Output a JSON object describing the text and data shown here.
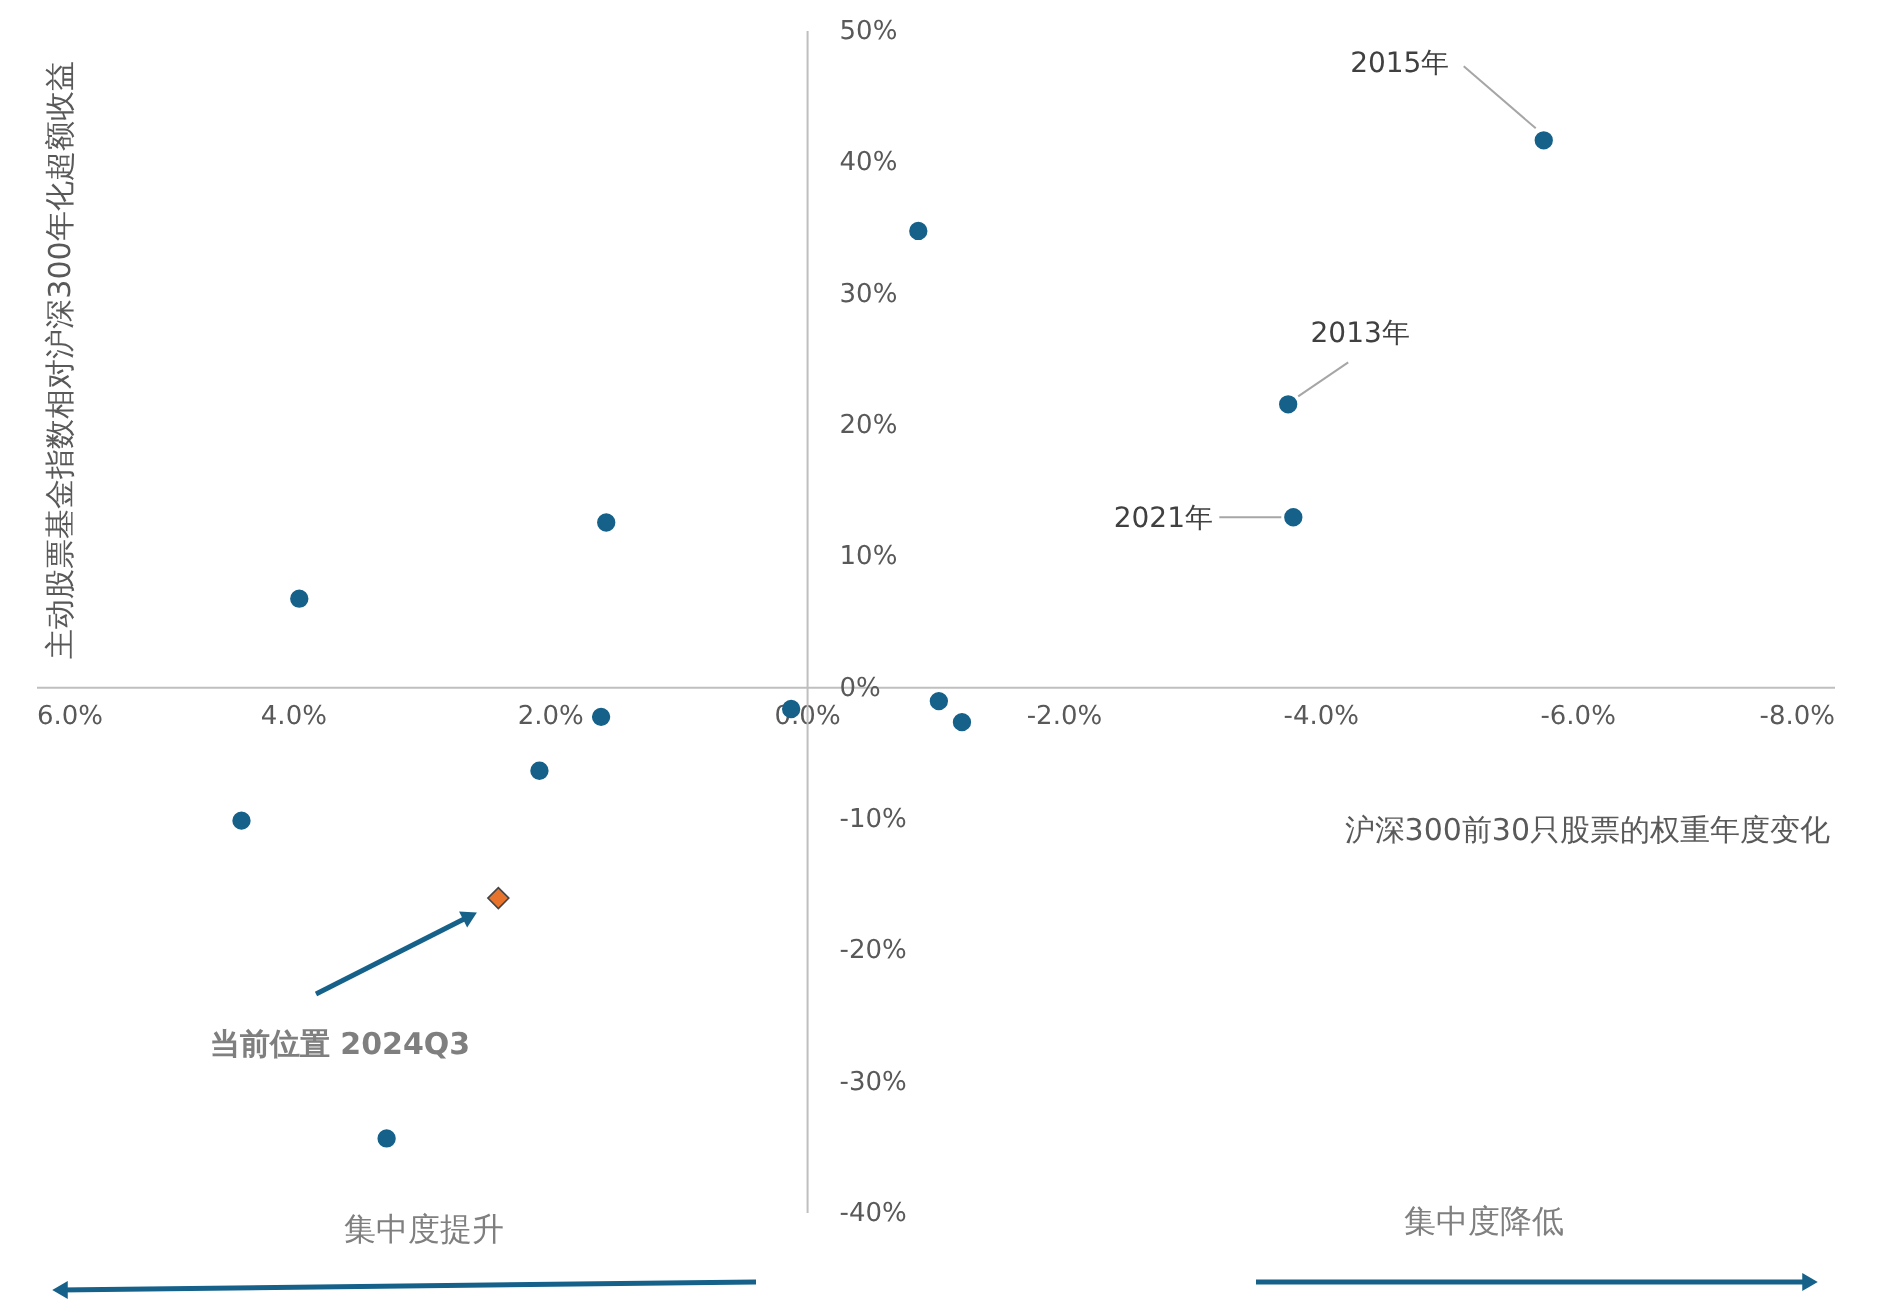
{
  "chart_data": {
    "type": "scatter",
    "xlabel": "沪深300前30只股票的权重年度变化",
    "ylabel": "主动股票基金指数相对沪深300年化超额收益",
    "series": [
      {
        "color": "#15618a",
        "marker": "circle",
        "x": [
          -5.74,
          -3.75,
          -3.79,
          -0.87,
          1.56,
          3.95,
          1.6,
          0.12,
          -1.03,
          -1.21,
          2.08,
          4.4,
          3.27
        ],
        "values": [
          41.6,
          21.5,
          12.9,
          34.7,
          12.5,
          6.7,
          -2.3,
          -1.7,
          -1.1,
          -2.7,
          -6.4,
          -10.2,
          -34.4
        ]
      },
      {
        "color": "#e8732c",
        "marker": "diamond",
        "x": [
          2.4
        ],
        "values": [
          -16.1
        ]
      }
    ],
    "xlim": [
      6,
      -8
    ],
    "ylim": [
      -40,
      50
    ],
    "xticks": [
      {
        "value": 6,
        "label": "6.0%"
      },
      {
        "value": 4,
        "label": "4.0%"
      },
      {
        "value": 2,
        "label": "2.0%"
      },
      {
        "value": 0,
        "label": "0.0%"
      },
      {
        "value": -2,
        "label": "-2.0%"
      },
      {
        "value": -4,
        "label": "-4.0%"
      },
      {
        "value": -6,
        "label": "-6.0%"
      },
      {
        "value": -8,
        "label": "-8.0%"
      }
    ],
    "yticks": [
      {
        "value": 50,
        "label": "50%"
      },
      {
        "value": 40,
        "label": "40%"
      },
      {
        "value": 30,
        "label": "30%"
      },
      {
        "value": 20,
        "label": "20%"
      },
      {
        "value": 10,
        "label": "10%"
      },
      {
        "value": 0,
        "label": "0%"
      },
      {
        "value": -10,
        "label": "-10%"
      },
      {
        "value": -20,
        "label": "-20%"
      },
      {
        "value": -30,
        "label": "-30%"
      },
      {
        "value": -40,
        "label": "-40%"
      }
    ],
    "grid": false,
    "annotations": [
      {
        "text": "2015年",
        "x": -5.74,
        "y": 41.6
      },
      {
        "text": "2013年",
        "x": -3.75,
        "y": 21.5
      },
      {
        "text": "2021年",
        "x": -3.79,
        "y": 12.9
      },
      "当前位置 2024Q3",
      "集中度提升",
      "集中度降低"
    ]
  }
}
